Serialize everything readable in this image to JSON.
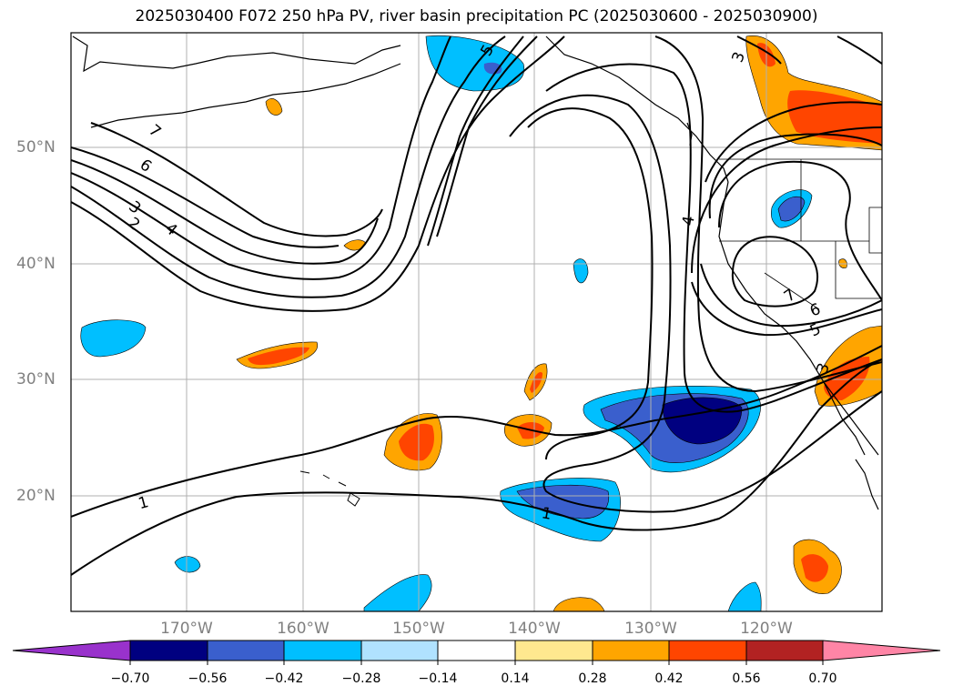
{
  "title": "2025030400 F072 250 hPa PV, river basin precipitation PC (2025030600 - 2025030900)",
  "lat_labels": [
    "50°N",
    "40°N",
    "30°N",
    "20°N"
  ],
  "lon_labels": [
    "170°W",
    "160°W",
    "150°W",
    "140°W",
    "130°W",
    "120°W"
  ],
  "contour_labels": [
    "1",
    "1",
    "2",
    "3",
    "4",
    "4",
    "5",
    "5",
    "6",
    "6",
    "7",
    "7",
    "3",
    "3"
  ],
  "colorbar": {
    "tick_labels": [
      "−0.70",
      "−0.56",
      "−0.42",
      "−0.28",
      "−0.14",
      "0.14",
      "0.28",
      "0.42",
      "0.56",
      "0.70"
    ],
    "colors": [
      "#9932cc",
      "#000080",
      "#3a5fcd",
      "#00bfff",
      "#b0e2ff",
      "#ffffff",
      "#ffe88f",
      "#ffa500",
      "#ff4500",
      "#b22222",
      "#ff85a6"
    ]
  }
}
